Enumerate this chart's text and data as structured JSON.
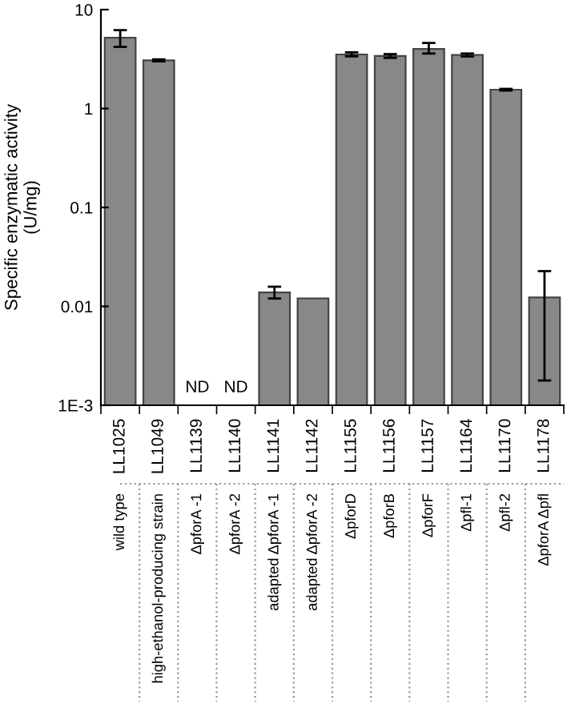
{
  "chart_data": {
    "type": "bar",
    "ylabel": "Specific enzymatic activity\n(U/mg)",
    "categories": [
      "LL1025",
      "LL1049",
      "LL1139",
      "LL1140",
      "LL1141",
      "LL1142",
      "LL1155",
      "LL1156",
      "LL1157",
      "LL1164",
      "LL1170",
      "LL1178"
    ],
    "series": [
      {
        "color": "#888888",
        "values": [
          5.2,
          3.07,
          null,
          null,
          0.0138,
          0.012,
          3.52,
          3.4,
          4.0,
          3.48,
          1.55,
          0.0123
        ],
        "value_labels": [
          null,
          null,
          "ND",
          "ND",
          null,
          null,
          null,
          null,
          null,
          null,
          null,
          null
        ],
        "errors": [
          [
            4.2,
            6.2
          ],
          [
            3.0,
            3.14
          ],
          null,
          null,
          [
            0.012,
            0.0158
          ],
          null,
          [
            3.37,
            3.7
          ],
          [
            3.25,
            3.55
          ],
          [
            3.6,
            4.6
          ],
          [
            3.36,
            3.6
          ],
          [
            1.52,
            1.58
          ],
          [
            0.00178,
            0.0227
          ]
        ]
      }
    ],
    "log": true,
    "ylim": [
      0.001,
      10
    ],
    "yticks": [
      {
        "value": 0.001,
        "label": "1E-3"
      },
      0.01,
      0.1,
      1,
      10
    ],
    "grid": false,
    "legend": false,
    "annotations": [
      "wild type",
      "high-ethanol-producing strain",
      "ΔpforA -1",
      "ΔpforA -2",
      "adapted ΔpforA -1",
      "adapted ΔpforA -2",
      "ΔpforD",
      "ΔpforB",
      "ΔpforF",
      "Δpfl-1",
      "Δpfl-2",
      "ΔpforA Δpfl"
    ]
  }
}
